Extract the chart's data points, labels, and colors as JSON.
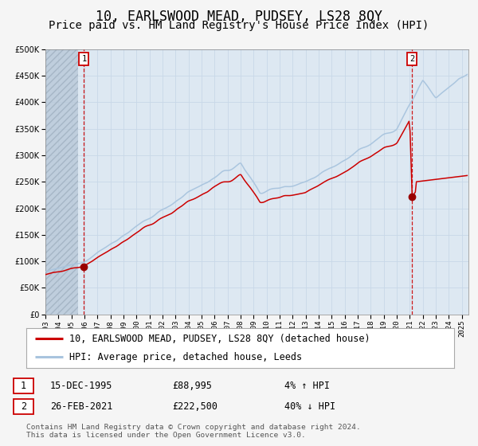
{
  "title": "10, EARLSWOOD MEAD, PUDSEY, LS28 8QY",
  "subtitle": "Price paid vs. HM Land Registry's House Price Index (HPI)",
  "legend_line1": "10, EARLSWOOD MEAD, PUDSEY, LS28 8QY (detached house)",
  "legend_line2": "HPI: Average price, detached house, Leeds",
  "footnote": "Contains HM Land Registry data © Crown copyright and database right 2024.\nThis data is licensed under the Open Government Licence v3.0.",
  "table_row1_date": "15-DEC-1995",
  "table_row1_price": "£88,995",
  "table_row1_hpi": "4% ↑ HPI",
  "table_row2_date": "26-FEB-2021",
  "table_row2_price": "£222,500",
  "table_row2_hpi": "40% ↓ HPI",
  "transaction1_date": 1995.96,
  "transaction1_price": 88995,
  "transaction2_date": 2021.15,
  "transaction2_price": 222500,
  "hpi_color": "#a8c4de",
  "property_color": "#cc0000",
  "marker_color": "#990000",
  "vline_color": "#cc0000",
  "grid_color": "#c8d8e8",
  "fig_bg_color": "#f5f5f5",
  "plot_bg_color": "#dde8f2",
  "hatch_color": "#c0ccd8",
  "ylim_min": 0,
  "ylim_max": 500000,
  "xmin": 1993.0,
  "xmax": 2025.5,
  "title_fontsize": 12,
  "subtitle_fontsize": 10,
  "tick_fontsize": 7,
  "legend_fontsize": 8.5,
  "table_fontsize": 8.5
}
